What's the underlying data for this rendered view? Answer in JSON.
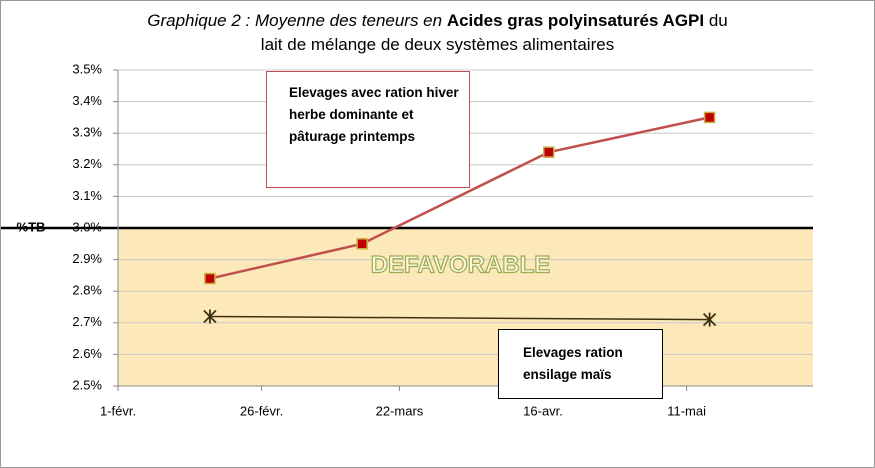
{
  "chart_data": {
    "type": "line",
    "title": {
      "part1": "Graphique 2 : Moyenne des teneurs en ",
      "part2": "Acides gras polyinsaturés AGPI",
      "part3": " du",
      "line2": "lait de mélange de deux systèmes alimentaires"
    },
    "ylabel": "%TB",
    "xlim": [
      0,
      121
    ],
    "xticks": [
      {
        "value": 0,
        "label": "1-févr."
      },
      {
        "value": 25,
        "label": "26-févr."
      },
      {
        "value": 49,
        "label": "22-mars"
      },
      {
        "value": 74,
        "label": "16-avr."
      },
      {
        "value": 99,
        "label": "11-mai"
      }
    ],
    "ylim": [
      2.5,
      3.5
    ],
    "yticks": [
      {
        "value": 2.5,
        "label": "2.5%"
      },
      {
        "value": 2.6,
        "label": "2.6%"
      },
      {
        "value": 2.7,
        "label": "2.7%"
      },
      {
        "value": 2.8,
        "label": "2.8%"
      },
      {
        "value": 2.9,
        "label": "2.9%"
      },
      {
        "value": 3.0,
        "label": "3.0%"
      },
      {
        "value": 3.1,
        "label": "3.1%"
      },
      {
        "value": 3.2,
        "label": "3.2%"
      },
      {
        "value": 3.3,
        "label": "3.3%"
      },
      {
        "value": 3.4,
        "label": "3.4%"
      },
      {
        "value": 3.5,
        "label": "3.5%"
      }
    ],
    "grid": true,
    "zone": {
      "label": "DEFAVORABLE",
      "range": [
        2.5,
        3.0
      ],
      "color": "#fce8b8"
    },
    "threshold": 3.0,
    "series": [
      {
        "name": "Elevages avec ration hiver herbe dominante et pâturage printemps",
        "color": "#c0504d",
        "marker": "square",
        "x": [
          16,
          42.5,
          75,
          103
        ],
        "values": [
          2.84,
          2.95,
          3.24,
          3.35
        ]
      },
      {
        "name": "Elevages ration ensilage maïs",
        "color": "#3b3010",
        "marker": "x",
        "x": [
          16,
          103
        ],
        "values": [
          2.72,
          2.71
        ]
      }
    ]
  }
}
